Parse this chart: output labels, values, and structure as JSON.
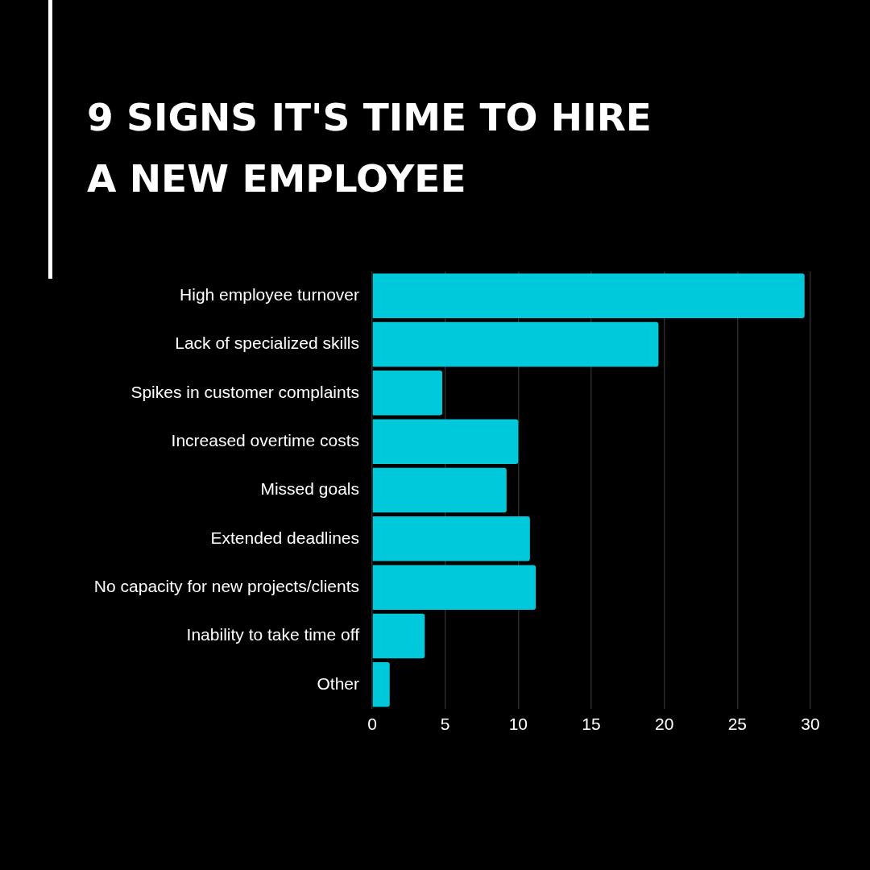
{
  "chart_data": {
    "type": "bar",
    "orientation": "horizontal",
    "title": "9 SIGNS IT'S TIME TO HIRE A NEW EMPLOYEE",
    "categories": [
      "High employee turnover",
      "Lack of specialized skills",
      "Spikes in customer complaints",
      "Increased overtime costs",
      "Missed goals",
      "Extended deadlines",
      "No capacity for new projects/clients",
      "Inability to take time off",
      "Other"
    ],
    "values": [
      29.6,
      19.6,
      4.8,
      10.0,
      9.2,
      10.8,
      11.2,
      3.6,
      1.2
    ],
    "color": "#00c9dc",
    "xlim": [
      0,
      30
    ],
    "xticks": [
      0,
      5,
      10,
      15,
      20,
      25,
      30
    ],
    "grid": "x",
    "legend": false
  }
}
